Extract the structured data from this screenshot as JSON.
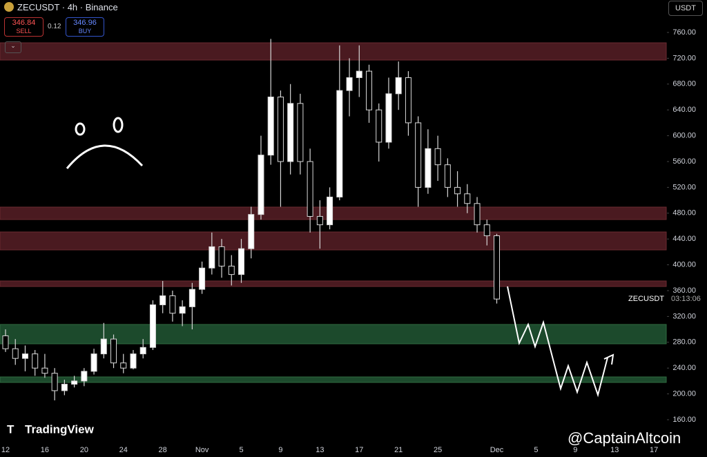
{
  "header": {
    "symbol": "ZECUSDT · 4h · Binance",
    "sell_price": "346.84",
    "sell_label": "SELL",
    "spread": "0.12",
    "buy_price": "346.96",
    "buy_label": "BUY",
    "currency": "USDT"
  },
  "chart_data": {
    "type": "candlestick",
    "categories": [
      "12",
      null,
      null,
      null,
      "16",
      null,
      null,
      null,
      "20",
      null,
      null,
      null,
      "24",
      null,
      null,
      null,
      "28",
      null,
      null,
      null,
      "Nov",
      null,
      null,
      null,
      "5",
      null,
      null,
      null,
      "9",
      null,
      null,
      null,
      "13",
      null,
      null,
      null,
      "17",
      null,
      null,
      null,
      "21",
      null,
      null,
      null,
      "25",
      null,
      null,
      null,
      null,
      null,
      "Dec",
      null,
      null,
      null,
      "5",
      null,
      null,
      null,
      "9",
      null,
      null,
      null,
      "13",
      null,
      null,
      null,
      "17"
    ],
    "open": [
      290,
      270,
      255,
      262,
      240,
      232,
      205,
      215,
      220,
      235,
      262,
      285,
      248,
      240,
      262,
      272,
      338,
      352,
      325,
      335,
      362,
      395,
      428,
      398,
      385,
      425,
      478,
      570,
      660,
      560,
      650,
      560,
      475,
      462,
      505,
      670,
      690,
      700,
      640,
      590,
      665,
      690,
      620,
      520,
      580,
      555,
      520,
      510,
      495,
      462,
      445,
      null,
      null,
      null,
      null,
      null,
      null,
      null,
      null,
      null,
      null,
      null,
      null,
      null,
      null,
      null,
      null
    ],
    "high": [
      300,
      285,
      275,
      268,
      262,
      240,
      222,
      228,
      240,
      270,
      310,
      292,
      262,
      268,
      285,
      345,
      375,
      360,
      345,
      372,
      405,
      450,
      440,
      415,
      440,
      490,
      600,
      750,
      670,
      680,
      665,
      580,
      500,
      520,
      740,
      720,
      740,
      710,
      650,
      690,
      715,
      700,
      630,
      610,
      600,
      565,
      545,
      525,
      505,
      470,
      448,
      null,
      null,
      null,
      null,
      null,
      null,
      null,
      null,
      null,
      null,
      null,
      null,
      null,
      null,
      null,
      null
    ],
    "low": [
      265,
      245,
      235,
      228,
      225,
      190,
      198,
      210,
      212,
      230,
      255,
      240,
      232,
      238,
      255,
      268,
      325,
      312,
      305,
      300,
      355,
      385,
      380,
      368,
      372,
      410,
      470,
      555,
      490,
      540,
      540,
      450,
      425,
      455,
      500,
      630,
      660,
      620,
      560,
      580,
      640,
      600,
      490,
      510,
      530,
      505,
      490,
      480,
      450,
      430,
      340,
      null,
      null,
      null,
      null,
      null,
      null,
      null,
      null,
      null,
      null,
      null,
      null,
      null,
      null,
      null,
      null
    ],
    "close": [
      270,
      255,
      262,
      240,
      232,
      205,
      215,
      220,
      235,
      262,
      285,
      248,
      240,
      262,
      272,
      338,
      352,
      325,
      335,
      362,
      395,
      428,
      398,
      385,
      425,
      478,
      570,
      660,
      560,
      650,
      560,
      475,
      462,
      505,
      670,
      690,
      700,
      640,
      590,
      665,
      690,
      620,
      520,
      580,
      555,
      520,
      510,
      495,
      462,
      445,
      347,
      null,
      null,
      null,
      null,
      null,
      null,
      null,
      null,
      null,
      null,
      null,
      null,
      null,
      null,
      null,
      null
    ],
    "ylim": [
      160,
      760
    ],
    "yticks": [
      {
        "value": 160,
        "label": "160.00"
      },
      {
        "value": 200,
        "label": "200.00"
      },
      {
        "value": 240,
        "label": "240.00"
      },
      {
        "value": 280,
        "label": "280.00"
      },
      {
        "value": 320,
        "label": "320.00"
      },
      {
        "value": 360,
        "label": "360.00"
      },
      {
        "value": 400,
        "label": "400.00"
      },
      {
        "value": 440,
        "label": "440.00"
      },
      {
        "value": 480,
        "label": "480.00"
      },
      {
        "value": 520,
        "label": "520.00"
      },
      {
        "value": 560,
        "label": "560.00"
      },
      {
        "value": 600,
        "label": "600.00"
      },
      {
        "value": 640,
        "label": "640.00"
      },
      {
        "value": 680,
        "label": "680.00"
      },
      {
        "value": 720,
        "label": "720.00"
      },
      {
        "value": 760,
        "label": "760.00"
      }
    ],
    "up_color": "#ffffff",
    "down_color": "#000000",
    "wick_color": "#d8d8d8"
  },
  "price_label": {
    "symbol": "ZECUSDT",
    "countdown": "03:13:06"
  },
  "watermark": {
    "brand": "TradingView",
    "author": "@CaptainAltcoin"
  }
}
